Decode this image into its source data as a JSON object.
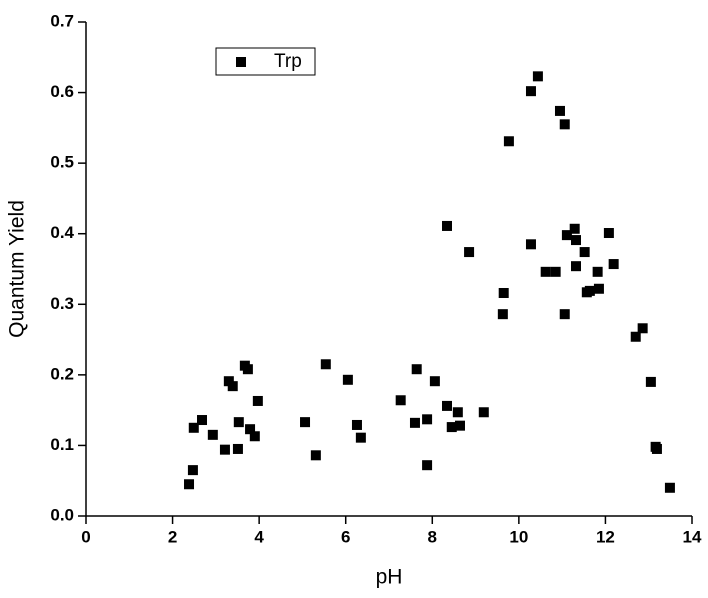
{
  "chart_data": {
    "type": "scatter",
    "x_label": "pH",
    "y_label": "Quantum Yield",
    "xlim": [
      0,
      14
    ],
    "ylim": [
      0,
      0.7
    ],
    "xticks": [
      0,
      2,
      4,
      6,
      8,
      10,
      12,
      14
    ],
    "yticks": [
      {
        "value": 0,
        "label": "0.0"
      },
      0.1,
      0.2,
      0.3,
      0.4,
      0.5,
      0.6,
      0.7
    ],
    "legend": "upper-left",
    "series": [
      {
        "name": "Trp",
        "color": "#000000",
        "x": [
          2.38,
          2.47,
          2.49,
          2.68,
          2.93,
          3.21,
          3.3,
          3.39,
          3.51,
          3.53,
          3.67,
          3.74,
          3.79,
          3.9,
          3.97,
          5.06,
          5.31,
          5.54,
          6.05,
          6.26,
          6.35,
          7.27,
          7.6,
          7.64,
          7.88,
          7.88,
          8.06,
          8.34,
          8.34,
          8.45,
          8.59,
          8.64,
          8.85,
          9.19,
          9.63,
          9.65,
          9.77,
          10.28,
          10.28,
          10.44,
          10.62,
          10.85,
          10.95,
          11.06,
          11.06,
          11.11,
          11.29,
          11.32,
          11.32,
          11.52,
          11.57,
          11.64,
          11.82,
          11.85,
          12.08,
          12.19,
          12.7,
          12.86,
          13.05,
          13.16,
          13.19,
          13.49
        ],
        "values": [
          0.045,
          0.065,
          0.125,
          0.136,
          0.115,
          0.094,
          0.191,
          0.184,
          0.095,
          0.133,
          0.213,
          0.208,
          0.123,
          0.113,
          0.163,
          0.133,
          0.086,
          0.215,
          0.193,
          0.129,
          0.111,
          0.164,
          0.132,
          0.208,
          0.137,
          0.072,
          0.191,
          0.156,
          0.411,
          0.126,
          0.147,
          0.128,
          0.374,
          0.147,
          0.286,
          0.316,
          0.531,
          0.602,
          0.385,
          0.623,
          0.346,
          0.346,
          0.574,
          0.555,
          0.286,
          0.398,
          0.407,
          0.391,
          0.354,
          0.374,
          0.317,
          0.319,
          0.346,
          0.322,
          0.401,
          0.357,
          0.254,
          0.266,
          0.19,
          0.098,
          0.095,
          0.04
        ]
      }
    ]
  }
}
